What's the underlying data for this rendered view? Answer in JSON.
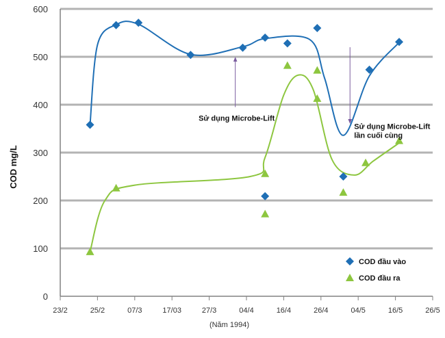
{
  "chart_data": {
    "type": "scatter",
    "title": "",
    "ylabel": "COD  mg/L",
    "xlabel": "(Năm 1994)",
    "ylim": [
      0,
      600
    ],
    "yticks": [
      0,
      100,
      200,
      300,
      400,
      500,
      600
    ],
    "x_index_range": [
      0,
      10
    ],
    "x_ticks": [
      "23/2",
      "25/2",
      "07/3",
      "17/03",
      "27/3",
      "04/4",
      "16/4",
      "26/4",
      "04/5",
      "16/5",
      "26/5"
    ],
    "grid": true,
    "legend_position": "bottom-right",
    "series": [
      {
        "name": "COD đầu vào",
        "marker": "diamond",
        "color": "#1f6fb5",
        "points": [
          {
            "x": 0.8,
            "y": 358
          },
          {
            "x": 1.5,
            "y": 566
          },
          {
            "x": 2.1,
            "y": 571
          },
          {
            "x": 3.5,
            "y": 504
          },
          {
            "x": 4.9,
            "y": 519
          },
          {
            "x": 5.5,
            "y": 540
          },
          {
            "x": 5.5,
            "y": 209
          },
          {
            "x": 6.1,
            "y": 528
          },
          {
            "x": 6.9,
            "y": 560
          },
          {
            "x": 7.6,
            "y": 250
          },
          {
            "x": 8.3,
            "y": 473
          },
          {
            "x": 9.1,
            "y": 531
          }
        ],
        "trend": [
          {
            "x": 0.8,
            "y": 358
          },
          {
            "x": 1.0,
            "y": 525
          },
          {
            "x": 1.5,
            "y": 567
          },
          {
            "x": 2.1,
            "y": 568
          },
          {
            "x": 3.5,
            "y": 505
          },
          {
            "x": 4.9,
            "y": 521
          },
          {
            "x": 5.5,
            "y": 538
          },
          {
            "x": 6.7,
            "y": 536
          },
          {
            "x": 7.1,
            "y": 455
          },
          {
            "x": 7.6,
            "y": 336
          },
          {
            "x": 8.3,
            "y": 460
          },
          {
            "x": 9.1,
            "y": 530
          }
        ]
      },
      {
        "name": "COD đầu ra",
        "marker": "triangle",
        "color": "#8dc63f",
        "points": [
          {
            "x": 0.8,
            "y": 93
          },
          {
            "x": 1.5,
            "y": 226
          },
          {
            "x": 5.5,
            "y": 256
          },
          {
            "x": 5.5,
            "y": 172
          },
          {
            "x": 6.1,
            "y": 482
          },
          {
            "x": 6.9,
            "y": 472
          },
          {
            "x": 6.9,
            "y": 413
          },
          {
            "x": 7.6,
            "y": 217
          },
          {
            "x": 8.2,
            "y": 279
          },
          {
            "x": 9.1,
            "y": 325
          }
        ],
        "trend": [
          {
            "x": 0.8,
            "y": 93
          },
          {
            "x": 1.2,
            "y": 200
          },
          {
            "x": 2.0,
            "y": 232
          },
          {
            "x": 5.1,
            "y": 250
          },
          {
            "x": 5.5,
            "y": 290
          },
          {
            "x": 6.0,
            "y": 420
          },
          {
            "x": 6.4,
            "y": 462
          },
          {
            "x": 6.8,
            "y": 430
          },
          {
            "x": 7.3,
            "y": 285
          },
          {
            "x": 7.9,
            "y": 253
          },
          {
            "x": 8.4,
            "y": 282
          },
          {
            "x": 9.1,
            "y": 320
          }
        ]
      }
    ],
    "annotations": [
      {
        "text": "Sử dụng Microbe-Lift",
        "lines": [
          "Sử dụng Microbe-Lift"
        ],
        "arrow_x": 4.7,
        "arrow_from_y": 395,
        "arrow_to_y": 495
      },
      {
        "text": "Sử dụng Microbe-Lift lần cuối cùng",
        "lines": [
          "Sử dụng Microbe-Lift",
          "lần cuối cùng"
        ],
        "arrow_x": 7.78,
        "arrow_from_y": 520,
        "arrow_to_y": 365
      }
    ]
  },
  "colors": {
    "axis": "#808080",
    "grid": "#b3b3b3",
    "annotation_arrow": "#7a5c9e"
  }
}
